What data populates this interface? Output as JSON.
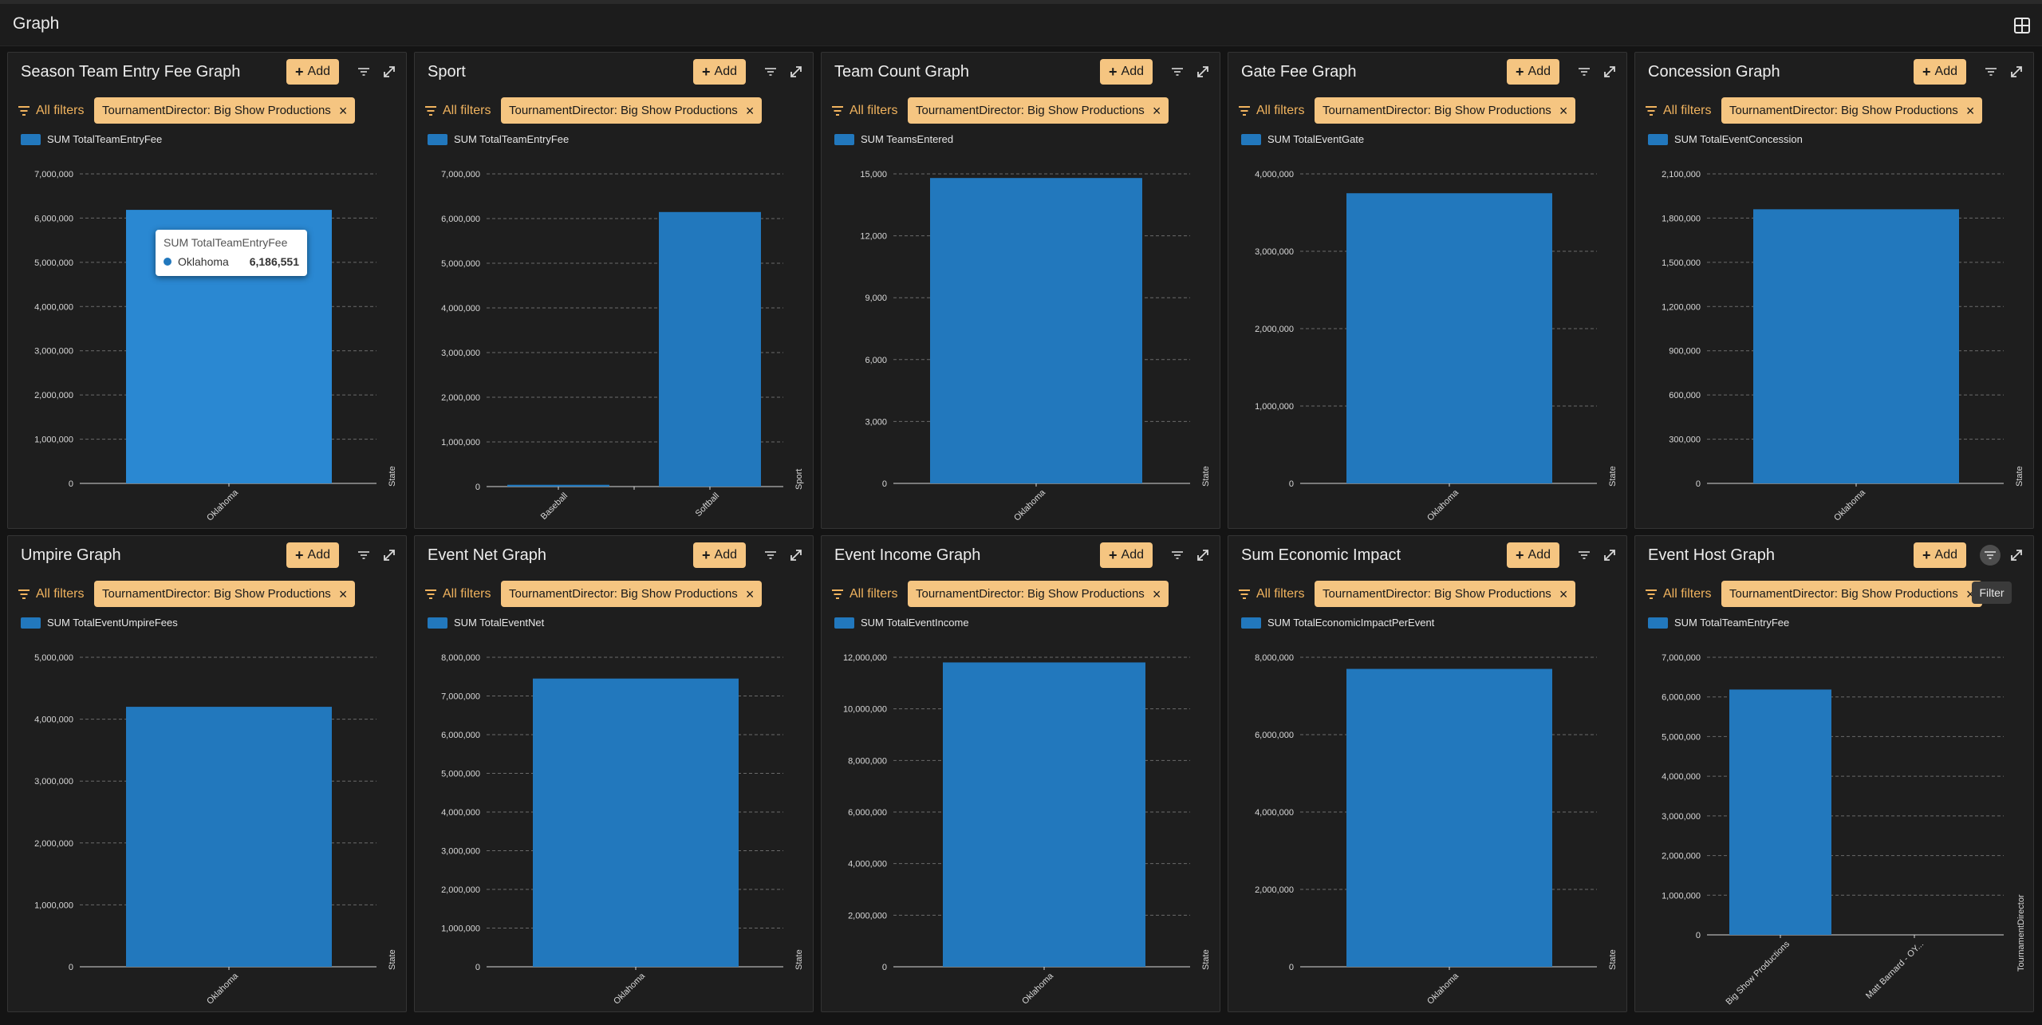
{
  "header": {
    "title": "Graph",
    "layout_icon": "grid-icon"
  },
  "colors": {
    "accent": "#f5c581",
    "bar": "#2278bd",
    "bar_hover": "#2a88d2"
  },
  "filter_chip_label": "TournamentDirector: Big Show Productions",
  "add_label": "Add",
  "all_filters_label": "All filters",
  "tooltip": {
    "title": "SUM TotalTeamEntryFee",
    "label": "Oklahoma",
    "value": "6,186,551"
  },
  "filter_tooltip": "Filter",
  "panels": [
    {
      "title": "Season Team Entry Fee Graph",
      "legend": "SUM TotalTeamEntryFee",
      "xaxis": "State",
      "chart_data": {
        "type": "bar",
        "categories": [
          "Oklahoma"
        ],
        "values": [
          6186551
        ],
        "ylim": [
          0,
          7000000
        ],
        "yticks": [
          "0",
          "1,000,000",
          "2,000,000",
          "3,000,000",
          "4,000,000",
          "5,000,000",
          "6,000,000",
          "7,000,000"
        ]
      }
    },
    {
      "title": "Sport",
      "legend": "SUM TotalTeamEntryFee",
      "xaxis": "Sport",
      "chart_data": {
        "type": "bar",
        "categories": [
          "Baseball",
          "Softball"
        ],
        "values": [
          40000,
          6146551
        ],
        "ylim": [
          0,
          7000000
        ],
        "yticks": [
          "0",
          "1,000,000",
          "2,000,000",
          "3,000,000",
          "4,000,000",
          "5,000,000",
          "6,000,000",
          "7,000,000"
        ]
      }
    },
    {
      "title": "Team Count Graph",
      "legend": "SUM TeamsEntered",
      "xaxis": "State",
      "chart_data": {
        "type": "bar",
        "categories": [
          "Oklahoma"
        ],
        "values": [
          14800
        ],
        "ylim": [
          0,
          15000
        ],
        "yticks": [
          "0",
          "3,000",
          "6,000",
          "9,000",
          "12,000",
          "15,000"
        ]
      }
    },
    {
      "title": "Gate Fee Graph",
      "legend": "SUM TotalEventGate",
      "xaxis": "State",
      "chart_data": {
        "type": "bar",
        "categories": [
          "Oklahoma"
        ],
        "values": [
          3750000
        ],
        "ylim": [
          0,
          4000000
        ],
        "yticks": [
          "0",
          "1,000,000",
          "2,000,000",
          "3,000,000",
          "4,000,000"
        ]
      }
    },
    {
      "title": "Concession Graph",
      "legend": "SUM TotalEventConcession",
      "xaxis": "State",
      "chart_data": {
        "type": "bar",
        "categories": [
          "Oklahoma"
        ],
        "values": [
          1860000
        ],
        "ylim": [
          0,
          2100000
        ],
        "yticks": [
          "0",
          "300,000",
          "600,000",
          "900,000",
          "1,200,000",
          "1,500,000",
          "1,800,000",
          "2,100,000"
        ]
      }
    },
    {
      "title": "Umpire Graph",
      "legend": "SUM TotalEventUmpireFees",
      "xaxis": "State",
      "chart_data": {
        "type": "bar",
        "categories": [
          "Oklahoma"
        ],
        "values": [
          4200000
        ],
        "ylim": [
          0,
          5000000
        ],
        "yticks": [
          "0",
          "1,000,000",
          "2,000,000",
          "3,000,000",
          "4,000,000",
          "5,000,000"
        ]
      }
    },
    {
      "title": "Event Net Graph",
      "legend": "SUM TotalEventNet",
      "xaxis": "State",
      "chart_data": {
        "type": "bar",
        "categories": [
          "Oklahoma"
        ],
        "values": [
          7450000
        ],
        "ylim": [
          0,
          8000000
        ],
        "yticks": [
          "0",
          "1,000,000",
          "2,000,000",
          "3,000,000",
          "4,000,000",
          "5,000,000",
          "6,000,000",
          "7,000,000",
          "8,000,000"
        ]
      }
    },
    {
      "title": "Event Income Graph",
      "legend": "SUM TotalEventIncome",
      "xaxis": "State",
      "chart_data": {
        "type": "bar",
        "categories": [
          "Oklahoma"
        ],
        "values": [
          11800000
        ],
        "ylim": [
          0,
          12000000
        ],
        "yticks": [
          "0",
          "2,000,000",
          "4,000,000",
          "6,000,000",
          "8,000,000",
          "10,000,000",
          "12,000,000"
        ]
      }
    },
    {
      "title": "Sum Economic Impact",
      "legend": "SUM TotalEconomicImpactPerEvent",
      "xaxis": "State",
      "chart_data": {
        "type": "bar",
        "categories": [
          "Oklahoma"
        ],
        "values": [
          7700000
        ],
        "ylim": [
          0,
          8000000
        ],
        "yticks": [
          "0",
          "2,000,000",
          "4,000,000",
          "6,000,000",
          "8,000,000"
        ]
      }
    },
    {
      "title": "Event Host Graph",
      "legend": "SUM TotalTeamEntryFee",
      "xaxis": "TournamentDirector",
      "chart_data": {
        "type": "bar",
        "categories": [
          "Big Show Productions",
          "Matt Barnard - OY..."
        ],
        "values": [
          6186551,
          0
        ],
        "ylim": [
          0,
          7000000
        ],
        "yticks": [
          "0",
          "1,000,000",
          "2,000,000",
          "3,000,000",
          "4,000,000",
          "5,000,000",
          "6,000,000",
          "7,000,000"
        ]
      }
    }
  ]
}
